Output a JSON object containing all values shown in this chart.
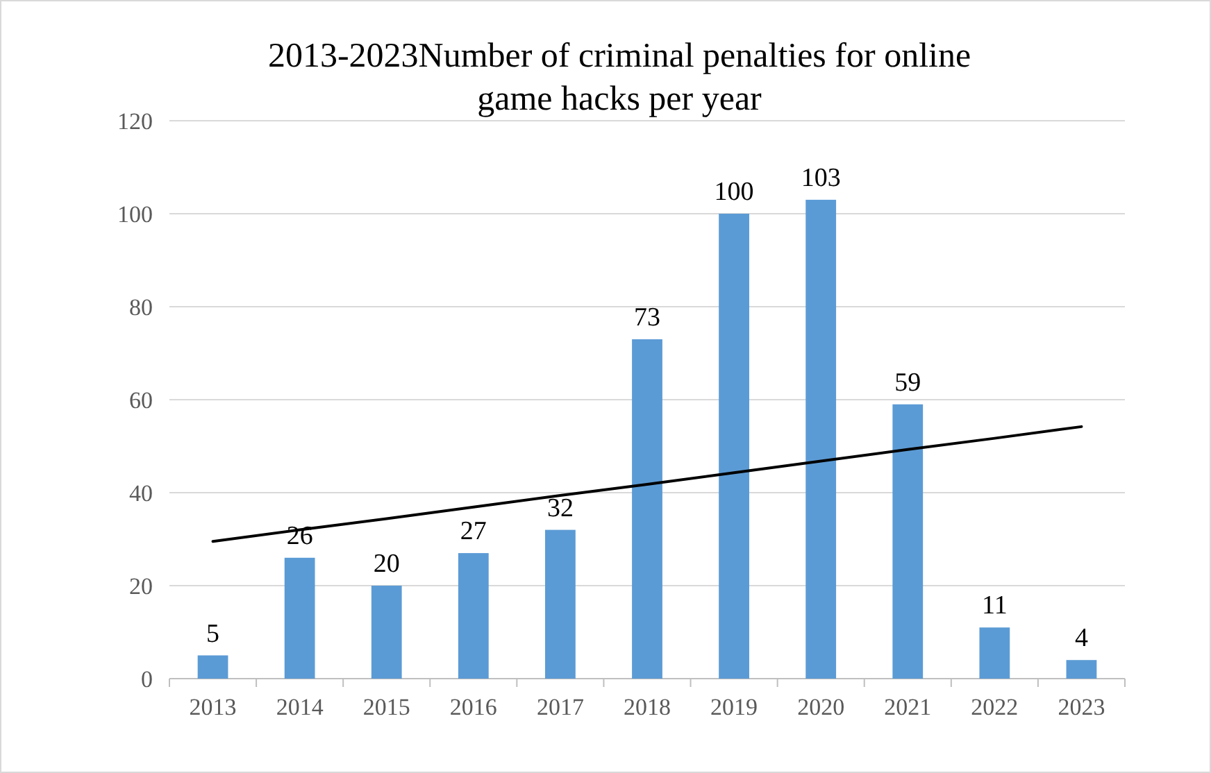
{
  "chart_data": {
    "type": "bar",
    "title": "2013-2023Number of criminal penalties for online game hacks per year",
    "categories": [
      "2013",
      "2014",
      "2015",
      "2016",
      "2017",
      "2018",
      "2019",
      "2020",
      "2021",
      "2022",
      "2023"
    ],
    "series": [
      {
        "color": "#5b9bd5",
        "values": [
          5,
          26,
          20,
          27,
          32,
          73,
          100,
          103,
          59,
          11,
          4
        ],
        "value_labels": [
          "5",
          "26",
          "20",
          "27",
          "32",
          "73",
          "100",
          "103",
          "59",
          "11",
          "4"
        ]
      },
      {
        "type": "line",
        "color": "#000000",
        "values": [
          29.5,
          32.0,
          34.4,
          36.9,
          39.4,
          41.8,
          44.3,
          46.8,
          49.3,
          51.7,
          54.2
        ]
      }
    ],
    "ylim": [
      0,
      120
    ],
    "yticks": [
      0,
      20,
      40,
      60,
      80,
      100,
      120
    ],
    "grid": "y"
  }
}
